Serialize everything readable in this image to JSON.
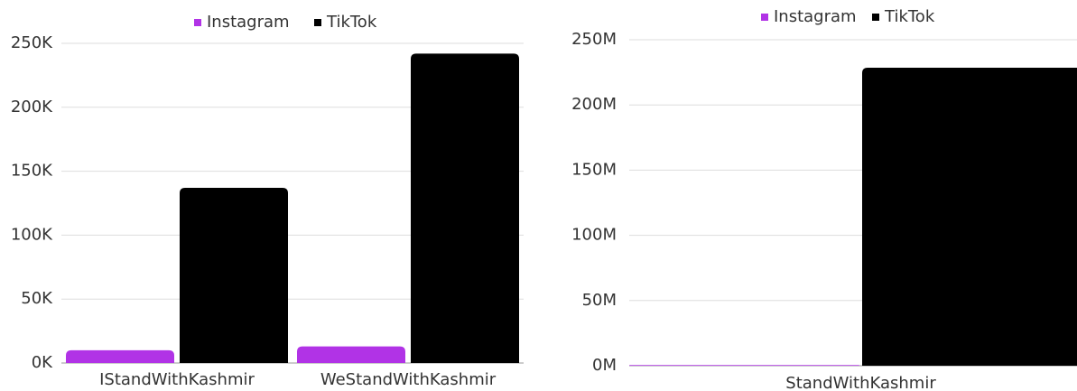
{
  "chart_data": [
    {
      "type": "bar",
      "categories": [
        "IStandWithKashmir",
        "WeStandWithKashmir"
      ],
      "series": [
        {
          "name": "Instagram",
          "color": "#b133e6",
          "values": [
            10000,
            13000
          ]
        },
        {
          "name": "TikTok",
          "color": "#000000",
          "values": [
            137000,
            242000
          ]
        }
      ],
      "ylim": [
        0,
        250000
      ],
      "yticks": [
        {
          "value": 0,
          "label": "0K"
        },
        {
          "value": 50000,
          "label": "50K"
        },
        {
          "value": 100000,
          "label": "100K"
        },
        {
          "value": 150000,
          "label": "150K"
        },
        {
          "value": 200000,
          "label": "200K"
        },
        {
          "value": 250000,
          "label": "250K"
        }
      ],
      "grid": true,
      "legend": "top"
    },
    {
      "type": "bar",
      "categories": [
        "StandWithKashmir"
      ],
      "series": [
        {
          "name": "Instagram",
          "color": "#b133e6",
          "values": [
            500000
          ]
        },
        {
          "name": "TikTok",
          "color": "#000000",
          "values": [
            228500000
          ]
        }
      ],
      "ylim": [
        0,
        250000000
      ],
      "yticks": [
        {
          "value": 0,
          "label": "0M"
        },
        {
          "value": 50000000,
          "label": "50M"
        },
        {
          "value": 100000000,
          "label": "100M"
        },
        {
          "value": 150000000,
          "label": "150M"
        },
        {
          "value": 200000000,
          "label": "200M"
        },
        {
          "value": 250000000,
          "label": "250M"
        }
      ],
      "grid": true,
      "legend": "top"
    }
  ]
}
